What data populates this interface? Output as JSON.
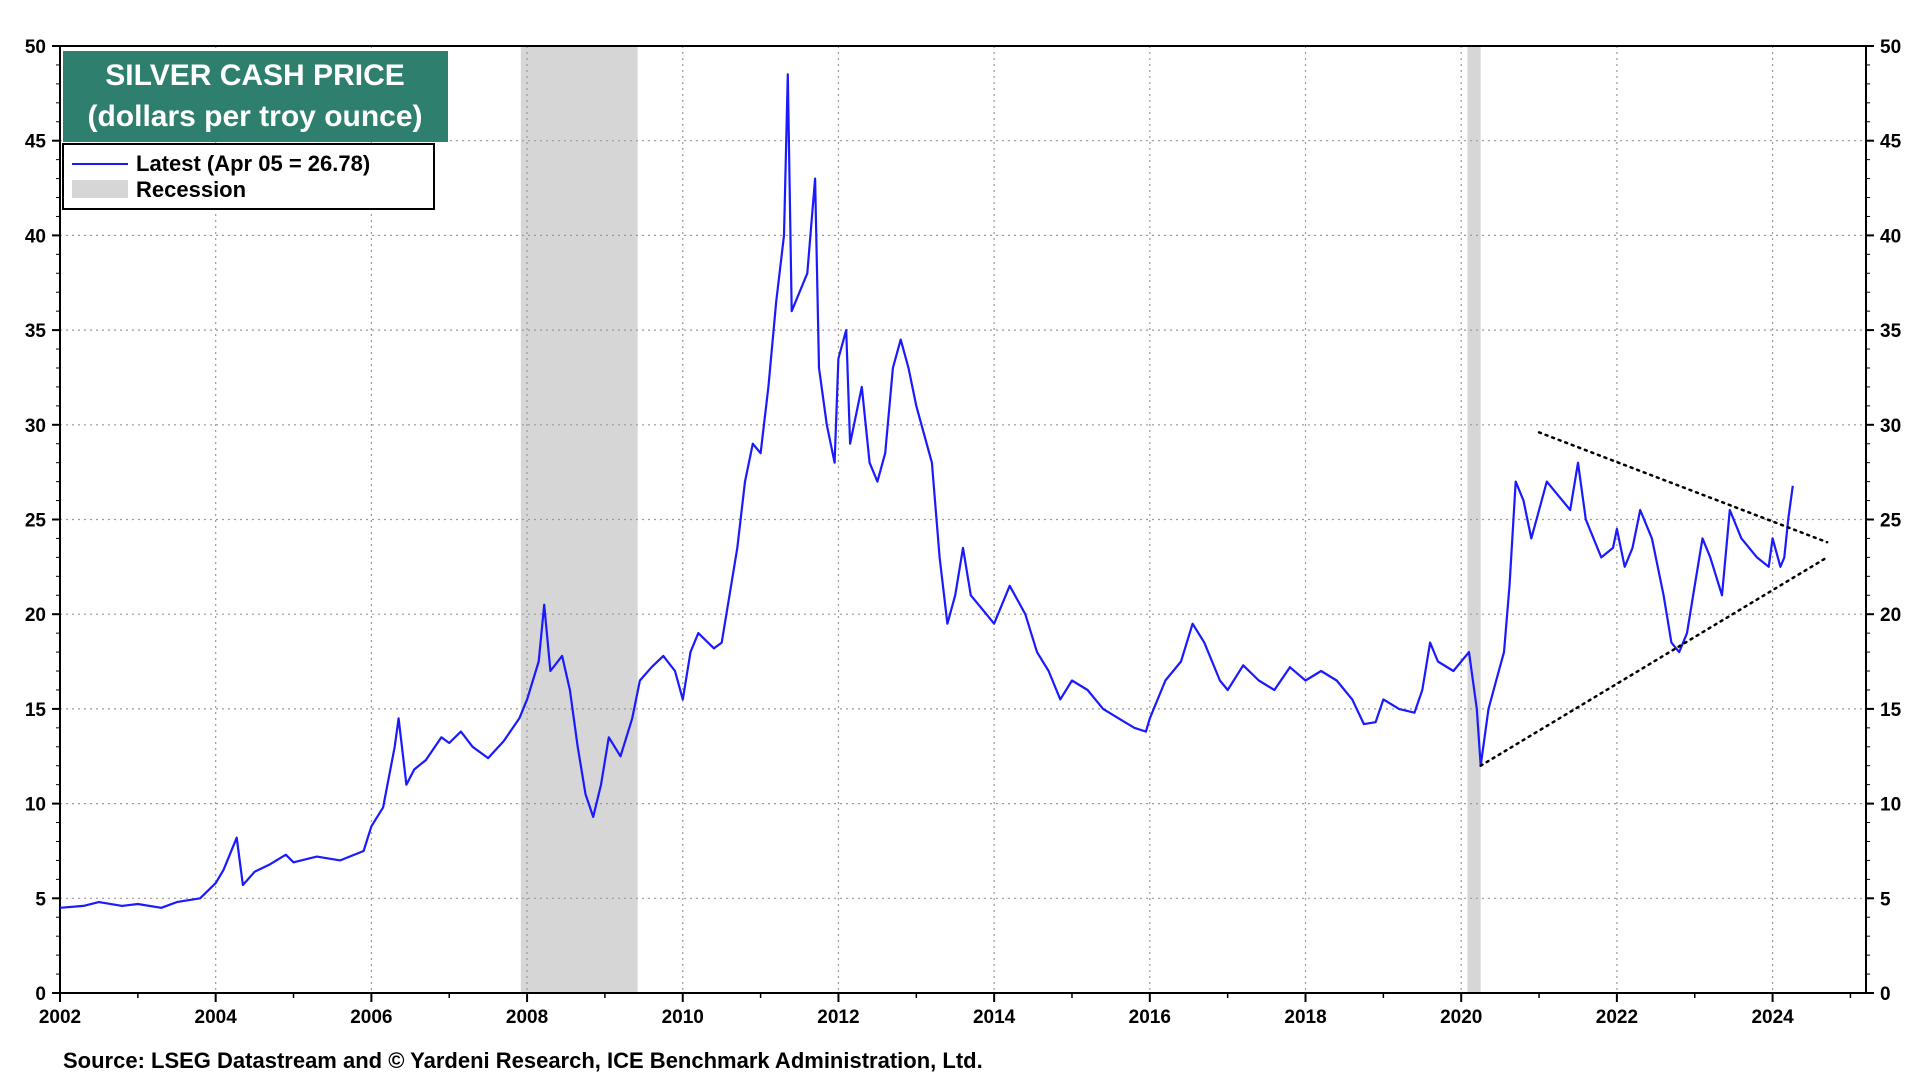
{
  "chart_data": {
    "type": "line",
    "title": "SILVER CASH PRICE",
    "subtitle": "(dollars per troy ounce)",
    "title_bg_color": "#2f7f6f",
    "line_color": "#1a1aff",
    "recession_color": "#d6d6d6",
    "xlim": [
      2002.0,
      2025.2
    ],
    "ylim": [
      0,
      50
    ],
    "x_ticks": [
      2002,
      2004,
      2006,
      2008,
      2010,
      2012,
      2014,
      2016,
      2018,
      2020,
      2022,
      2024
    ],
    "x_tick_labels": [
      "2002",
      "2004",
      "2006",
      "2008",
      "2010",
      "2012",
      "2014",
      "2016",
      "2018",
      "2020",
      "2022",
      "2024"
    ],
    "y_ticks": [
      0,
      5,
      10,
      15,
      20,
      25,
      30,
      35,
      40,
      45,
      50
    ],
    "y_tick_labels": [
      "0",
      "5",
      "10",
      "15",
      "20",
      "25",
      "30",
      "35",
      "40",
      "45",
      "50"
    ],
    "grid": true,
    "legend_position": "top-left",
    "legend": [
      {
        "label": "Latest (Apr 05 = 26.78)",
        "kind": "line"
      },
      {
        "label": "Recession",
        "kind": "band"
      }
    ],
    "recessions": [
      {
        "start": 2007.92,
        "end": 2009.42
      },
      {
        "start": 2020.08,
        "end": 2020.25
      }
    ],
    "trendlines": [
      {
        "x": [
          2021.0,
          2024.7
        ],
        "y": [
          29.6,
          23.8
        ]
      },
      {
        "x": [
          2020.25,
          2024.7
        ],
        "y": [
          12.0,
          23.0
        ]
      }
    ],
    "series": [
      {
        "name": "Latest (Apr 05 = 26.78)",
        "x": [
          2002.0,
          2002.3,
          2002.5,
          2002.8,
          2003.0,
          2003.3,
          2003.5,
          2003.8,
          2004.0,
          2004.1,
          2004.27,
          2004.35,
          2004.5,
          2004.7,
          2004.9,
          2005.0,
          2005.3,
          2005.6,
          2005.9,
          2006.0,
          2006.15,
          2006.3,
          2006.35,
          2006.45,
          2006.55,
          2006.7,
          2006.9,
          2007.0,
          2007.15,
          2007.3,
          2007.5,
          2007.7,
          2007.9,
          2008.0,
          2008.15,
          2008.22,
          2008.3,
          2008.45,
          2008.55,
          2008.65,
          2008.75,
          2008.85,
          2008.95,
          2009.05,
          2009.2,
          2009.35,
          2009.45,
          2009.6,
          2009.75,
          2009.9,
          2010.0,
          2010.1,
          2010.2,
          2010.4,
          2010.5,
          2010.6,
          2010.7,
          2010.8,
          2010.9,
          2011.0,
          2011.1,
          2011.2,
          2011.3,
          2011.35,
          2011.4,
          2011.5,
          2011.6,
          2011.65,
          2011.7,
          2011.75,
          2011.85,
          2011.95,
          2012.0,
          2012.1,
          2012.15,
          2012.3,
          2012.4,
          2012.5,
          2012.6,
          2012.7,
          2012.8,
          2012.9,
          2013.0,
          2013.1,
          2013.2,
          2013.3,
          2013.4,
          2013.5,
          2013.6,
          2013.7,
          2013.9,
          2014.0,
          2014.2,
          2014.4,
          2014.55,
          2014.7,
          2014.85,
          2015.0,
          2015.2,
          2015.4,
          2015.6,
          2015.8,
          2015.95,
          2016.0,
          2016.2,
          2016.4,
          2016.55,
          2016.7,
          2016.9,
          2017.0,
          2017.2,
          2017.4,
          2017.6,
          2017.8,
          2018.0,
          2018.2,
          2018.4,
          2018.6,
          2018.75,
          2018.9,
          2019.0,
          2019.2,
          2019.4,
          2019.5,
          2019.6,
          2019.7,
          2019.9,
          2020.0,
          2020.1,
          2020.2,
          2020.25,
          2020.35,
          2020.45,
          2020.55,
          2020.62,
          2020.7,
          2020.8,
          2020.9,
          2021.0,
          2021.1,
          2021.2,
          2021.4,
          2021.5,
          2021.6,
          2021.8,
          2021.95,
          2022.0,
          2022.1,
          2022.2,
          2022.3,
          2022.45,
          2022.6,
          2022.7,
          2022.8,
          2022.9,
          2023.0,
          2023.1,
          2023.2,
          2023.35,
          2023.45,
          2023.6,
          2023.8,
          2023.95,
          2024.0,
          2024.1,
          2024.15,
          2024.2,
          2024.26
        ],
        "y": [
          4.5,
          4.6,
          4.8,
          4.6,
          4.7,
          4.5,
          4.8,
          5.0,
          5.8,
          6.5,
          8.2,
          5.7,
          6.4,
          6.8,
          7.3,
          6.9,
          7.2,
          7.0,
          7.5,
          8.8,
          9.8,
          13.0,
          14.5,
          11.0,
          11.8,
          12.3,
          13.5,
          13.2,
          13.8,
          13.0,
          12.4,
          13.3,
          14.5,
          15.5,
          17.5,
          20.5,
          17.0,
          17.8,
          16.0,
          13.0,
          10.5,
          9.3,
          11.0,
          13.5,
          12.5,
          14.5,
          16.5,
          17.2,
          17.8,
          17.0,
          15.5,
          18.0,
          19.0,
          18.2,
          18.5,
          21.0,
          23.5,
          27.0,
          29.0,
          28.5,
          32.0,
          36.5,
          40.0,
          48.5,
          36.0,
          37.0,
          38.0,
          40.5,
          43.0,
          33.0,
          30.0,
          28.0,
          33.5,
          35.0,
          29.0,
          32.0,
          28.0,
          27.0,
          28.5,
          33.0,
          34.5,
          33.0,
          31.0,
          29.5,
          28.0,
          23.0,
          19.5,
          21.0,
          23.5,
          21.0,
          20.0,
          19.5,
          21.5,
          20.0,
          18.0,
          17.0,
          15.5,
          16.5,
          16.0,
          15.0,
          14.5,
          14.0,
          13.8,
          14.5,
          16.5,
          17.5,
          19.5,
          18.5,
          16.5,
          16.0,
          17.3,
          16.5,
          16.0,
          17.2,
          16.5,
          17.0,
          16.5,
          15.5,
          14.2,
          14.3,
          15.5,
          15.0,
          14.8,
          16.0,
          18.5,
          17.5,
          17.0,
          17.5,
          18.0,
          15.0,
          12.0,
          15.0,
          16.5,
          18.0,
          21.5,
          27.0,
          26.0,
          24.0,
          25.5,
          27.0,
          26.5,
          25.5,
          28.0,
          25.0,
          23.0,
          23.5,
          24.5,
          22.5,
          23.5,
          25.5,
          24.0,
          21.0,
          18.5,
          18.0,
          19.0,
          21.5,
          24.0,
          23.0,
          21.0,
          25.5,
          24.0,
          23.0,
          22.5,
          24.0,
          22.5,
          23.0,
          25.0,
          26.78
        ]
      }
    ]
  },
  "source": "Source: LSEG Datastream and © Yardeni Research, ICE Benchmark Administration, Ltd."
}
